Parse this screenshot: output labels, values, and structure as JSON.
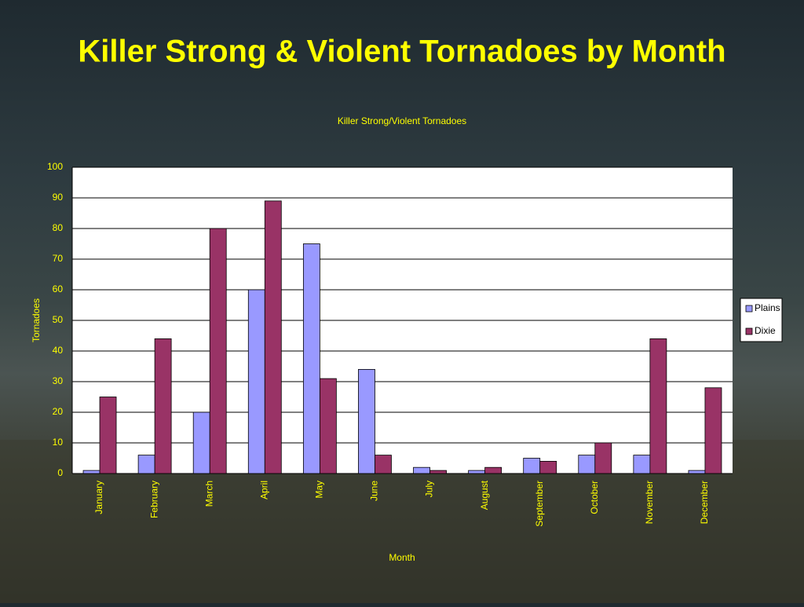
{
  "title": "Killer Strong & Violent Tornadoes by Month",
  "chart_data": {
    "type": "bar",
    "title": "Killer Strong/Violent Tornadoes",
    "x_label": "Month",
    "y_label": "Tornadoes",
    "categories": [
      "January",
      "February",
      "March",
      "April",
      "May",
      "June",
      "July",
      "August",
      "September",
      "October",
      "November",
      "December"
    ],
    "series": [
      {
        "name": "Plains",
        "color": "#9999ff",
        "values": [
          1,
          6,
          20,
          60,
          75,
          34,
          2,
          1,
          5,
          6,
          6,
          1
        ]
      },
      {
        "name": "Dixie",
        "color": "#993366",
        "values": [
          25,
          44,
          80,
          89,
          31,
          6,
          1,
          2,
          4,
          10,
          44,
          28
        ]
      }
    ],
    "ylim": [
      0,
      100
    ],
    "yticks": [
      0,
      10,
      20,
      30,
      40,
      50,
      60,
      70,
      80,
      90,
      100
    ],
    "grid": true,
    "legend": "right"
  }
}
